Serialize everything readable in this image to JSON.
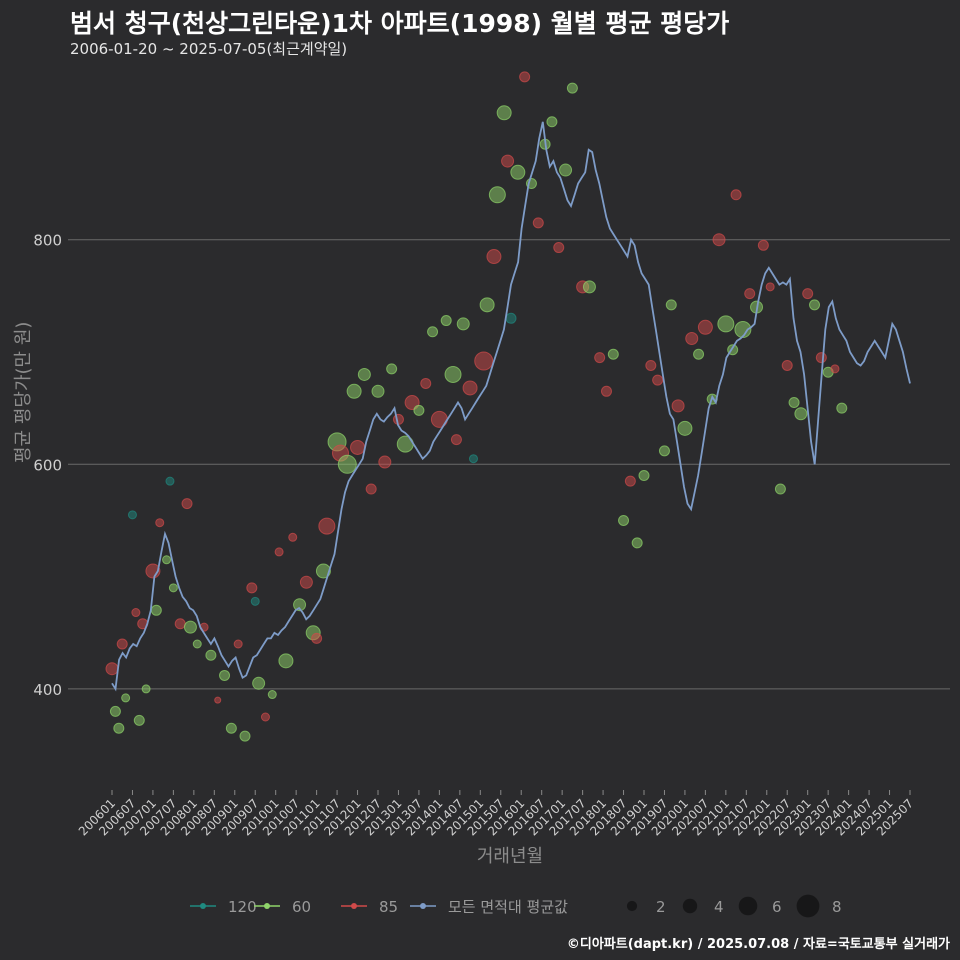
{
  "chart_data": {
    "type": "scatter",
    "title": "범서 청구(천상그린타운)1차 아파트(1998) 월별 평균 평당가",
    "subtitle": "2006-01-20 ~ 2025-07-05(최근계약일)",
    "xlabel": "거래년월",
    "ylabel": "평균 평당가(만 원)",
    "ylim": [
      310,
      960
    ],
    "yticks": [
      400,
      600,
      800
    ],
    "xticks": [
      "200601",
      "200607",
      "200701",
      "200707",
      "200801",
      "200807",
      "200901",
      "200907",
      "201001",
      "201007",
      "201101",
      "201107",
      "201201",
      "201207",
      "201301",
      "201307",
      "201401",
      "201407",
      "201501",
      "201507",
      "201601",
      "201607",
      "201701",
      "201707",
      "201801",
      "201807",
      "201901",
      "201907",
      "202001",
      "202007",
      "202101",
      "202107",
      "202201",
      "202207",
      "202301",
      "202307",
      "202401",
      "202407",
      "202501",
      "202507"
    ],
    "series_colors": {
      "120": "#1f8a80",
      "60": "#8fd46a",
      "85": "#d04a4a",
      "all": "#7e9cc8"
    },
    "legend": {
      "series": [
        {
          "key": "120",
          "label": "120"
        },
        {
          "key": "60",
          "label": "60"
        },
        {
          "key": "85",
          "label": "85"
        },
        {
          "key": "all",
          "label": "모든 면적대 평균값"
        }
      ],
      "sizes": [
        2,
        4,
        6,
        8
      ]
    },
    "avg_series_monthly": [
      405,
      400,
      426,
      432,
      428,
      436,
      440,
      438,
      445,
      450,
      458,
      470,
      500,
      505,
      522,
      538,
      530,
      515,
      500,
      490,
      482,
      478,
      472,
      470,
      465,
      455,
      450,
      445,
      440,
      445,
      438,
      430,
      425,
      420,
      425,
      428,
      418,
      410,
      412,
      420,
      428,
      430,
      435,
      440,
      445,
      445,
      450,
      448,
      452,
      455,
      460,
      465,
      470,
      472,
      468,
      462,
      465,
      470,
      475,
      480,
      490,
      500,
      510,
      520,
      540,
      560,
      575,
      585,
      590,
      595,
      600,
      605,
      620,
      630,
      640,
      645,
      640,
      638,
      642,
      645,
      650,
      635,
      630,
      628,
      625,
      620,
      615,
      610,
      605,
      608,
      612,
      620,
      625,
      630,
      635,
      640,
      645,
      650,
      655,
      650,
      640,
      645,
      650,
      655,
      660,
      665,
      670,
      680,
      690,
      700,
      710,
      720,
      740,
      760,
      770,
      780,
      810,
      830,
      850,
      860,
      870,
      890,
      905,
      880,
      865,
      870,
      860,
      855,
      845,
      835,
      830,
      840,
      850,
      855,
      860,
      880,
      878,
      862,
      850,
      835,
      820,
      810,
      805,
      800,
      795,
      790,
      785,
      800,
      795,
      780,
      770,
      765,
      760,
      740,
      720,
      700,
      680,
      660,
      645,
      640,
      620,
      600,
      580,
      565,
      560,
      575,
      590,
      610,
      630,
      650,
      660,
      655,
      670,
      680,
      695,
      700,
      705,
      710,
      712,
      715,
      720,
      722,
      725,
      745,
      760,
      770,
      775,
      770,
      765,
      760,
      762,
      760,
      765,
      730,
      710,
      700,
      680,
      650,
      620,
      600,
      640,
      680,
      720,
      740,
      745,
      730,
      720,
      715,
      710,
      700,
      695,
      690,
      688,
      692,
      700,
      705,
      710,
      705,
      700,
      695,
      710,
      725,
      720,
      710,
      700,
      685,
      672
    ],
    "points": [
      {
        "s": "85",
        "x": 200601,
        "y": 418,
        "r": 6
      },
      {
        "s": "60",
        "x": 200602,
        "y": 380,
        "r": 5
      },
      {
        "s": "60",
        "x": 200603,
        "y": 365,
        "r": 5
      },
      {
        "s": "85",
        "x": 200604,
        "y": 440,
        "r": 5
      },
      {
        "s": "60",
        "x": 200605,
        "y": 392,
        "r": 4
      },
      {
        "s": "120",
        "x": 200607,
        "y": 555,
        "r": 4
      },
      {
        "s": "85",
        "x": 200608,
        "y": 468,
        "r": 4
      },
      {
        "s": "60",
        "x": 200609,
        "y": 372,
        "r": 5
      },
      {
        "s": "85",
        "x": 200610,
        "y": 458,
        "r": 5
      },
      {
        "s": "60",
        "x": 200611,
        "y": 400,
        "r": 4
      },
      {
        "s": "85",
        "x": 200701,
        "y": 505,
        "r": 7
      },
      {
        "s": "60",
        "x": 200702,
        "y": 470,
        "r": 5
      },
      {
        "s": "85",
        "x": 200703,
        "y": 548,
        "r": 4
      },
      {
        "s": "60",
        "x": 200705,
        "y": 515,
        "r": 4
      },
      {
        "s": "120",
        "x": 200706,
        "y": 585,
        "r": 4
      },
      {
        "s": "60",
        "x": 200707,
        "y": 490,
        "r": 4
      },
      {
        "s": "85",
        "x": 200709,
        "y": 458,
        "r": 5
      },
      {
        "s": "85",
        "x": 200711,
        "y": 565,
        "r": 5
      },
      {
        "s": "60",
        "x": 200712,
        "y": 455,
        "r": 6
      },
      {
        "s": "60",
        "x": 200802,
        "y": 440,
        "r": 4
      },
      {
        "s": "85",
        "x": 200804,
        "y": 455,
        "r": 4
      },
      {
        "s": "60",
        "x": 200806,
        "y": 430,
        "r": 5
      },
      {
        "s": "85",
        "x": 200808,
        "y": 390,
        "r": 3
      },
      {
        "s": "60",
        "x": 200810,
        "y": 412,
        "r": 5
      },
      {
        "s": "60",
        "x": 200812,
        "y": 365,
        "r": 5
      },
      {
        "s": "85",
        "x": 200902,
        "y": 440,
        "r": 4
      },
      {
        "s": "60",
        "x": 200904,
        "y": 358,
        "r": 5
      },
      {
        "s": "85",
        "x": 200906,
        "y": 490,
        "r": 5
      },
      {
        "s": "120",
        "x": 200907,
        "y": 478,
        "r": 4
      },
      {
        "s": "60",
        "x": 200908,
        "y": 405,
        "r": 6
      },
      {
        "s": "85",
        "x": 200910,
        "y": 375,
        "r": 4
      },
      {
        "s": "60",
        "x": 200912,
        "y": 395,
        "r": 4
      },
      {
        "s": "85",
        "x": 201002,
        "y": 522,
        "r": 4
      },
      {
        "s": "60",
        "x": 201004,
        "y": 425,
        "r": 7
      },
      {
        "s": "85",
        "x": 201006,
        "y": 535,
        "r": 4
      },
      {
        "s": "60",
        "x": 201008,
        "y": 475,
        "r": 6
      },
      {
        "s": "85",
        "x": 201010,
        "y": 495,
        "r": 6
      },
      {
        "s": "60",
        "x": 201012,
        "y": 450,
        "r": 7
      },
      {
        "s": "85",
        "x": 201101,
        "y": 445,
        "r": 5
      },
      {
        "s": "60",
        "x": 201103,
        "y": 505,
        "r": 7
      },
      {
        "s": "85",
        "x": 201104,
        "y": 545,
        "r": 8
      },
      {
        "s": "60",
        "x": 201107,
        "y": 620,
        "r": 9
      },
      {
        "s": "85",
        "x": 201108,
        "y": 610,
        "r": 8
      },
      {
        "s": "60",
        "x": 201110,
        "y": 600,
        "r": 9
      },
      {
        "s": "60",
        "x": 201112,
        "y": 665,
        "r": 7
      },
      {
        "s": "85",
        "x": 201201,
        "y": 615,
        "r": 7
      },
      {
        "s": "60",
        "x": 201203,
        "y": 680,
        "r": 6
      },
      {
        "s": "85",
        "x": 201205,
        "y": 578,
        "r": 5
      },
      {
        "s": "60",
        "x": 201207,
        "y": 665,
        "r": 6
      },
      {
        "s": "85",
        "x": 201209,
        "y": 602,
        "r": 6
      },
      {
        "s": "60",
        "x": 201211,
        "y": 685,
        "r": 5
      },
      {
        "s": "85",
        "x": 201301,
        "y": 640,
        "r": 5
      },
      {
        "s": "60",
        "x": 201303,
        "y": 618,
        "r": 8
      },
      {
        "s": "85",
        "x": 201305,
        "y": 655,
        "r": 7
      },
      {
        "s": "60",
        "x": 201307,
        "y": 648,
        "r": 5
      },
      {
        "s": "85",
        "x": 201309,
        "y": 672,
        "r": 5
      },
      {
        "s": "60",
        "x": 201311,
        "y": 718,
        "r": 5
      },
      {
        "s": "85",
        "x": 201401,
        "y": 640,
        "r": 8
      },
      {
        "s": "60",
        "x": 201403,
        "y": 728,
        "r": 5
      },
      {
        "s": "60",
        "x": 201405,
        "y": 680,
        "r": 8
      },
      {
        "s": "85",
        "x": 201406,
        "y": 622,
        "r": 5
      },
      {
        "s": "60",
        "x": 201408,
        "y": 725,
        "r": 6
      },
      {
        "s": "85",
        "x": 201410,
        "y": 668,
        "r": 7
      },
      {
        "s": "120",
        "x": 201411,
        "y": 605,
        "r": 4
      },
      {
        "s": "85",
        "x": 201502,
        "y": 692,
        "r": 9
      },
      {
        "s": "60",
        "x": 201503,
        "y": 742,
        "r": 7
      },
      {
        "s": "85",
        "x": 201505,
        "y": 785,
        "r": 7
      },
      {
        "s": "60",
        "x": 201506,
        "y": 840,
        "r": 8
      },
      {
        "s": "60",
        "x": 201508,
        "y": 913,
        "r": 7
      },
      {
        "s": "85",
        "x": 201509,
        "y": 870,
        "r": 6
      },
      {
        "s": "120",
        "x": 201510,
        "y": 730,
        "r": 5
      },
      {
        "s": "60",
        "x": 201512,
        "y": 860,
        "r": 7
      },
      {
        "s": "85",
        "x": 201602,
        "y": 945,
        "r": 5
      },
      {
        "s": "60",
        "x": 201604,
        "y": 850,
        "r": 5
      },
      {
        "s": "85",
        "x": 201606,
        "y": 815,
        "r": 5
      },
      {
        "s": "60",
        "x": 201608,
        "y": 885,
        "r": 5
      },
      {
        "s": "60",
        "x": 201610,
        "y": 905,
        "r": 5
      },
      {
        "s": "85",
        "x": 201612,
        "y": 793,
        "r": 5
      },
      {
        "s": "60",
        "x": 201702,
        "y": 862,
        "r": 6
      },
      {
        "s": "60",
        "x": 201704,
        "y": 935,
        "r": 5
      },
      {
        "s": "85",
        "x": 201707,
        "y": 758,
        "r": 6
      },
      {
        "s": "60",
        "x": 201709,
        "y": 758,
        "r": 6
      },
      {
        "s": "85",
        "x": 201712,
        "y": 695,
        "r": 5
      },
      {
        "s": "85",
        "x": 201802,
        "y": 665,
        "r": 5
      },
      {
        "s": "60",
        "x": 201804,
        "y": 698,
        "r": 5
      },
      {
        "s": "60",
        "x": 201807,
        "y": 550,
        "r": 5
      },
      {
        "s": "85",
        "x": 201809,
        "y": 585,
        "r": 5
      },
      {
        "s": "60",
        "x": 201811,
        "y": 530,
        "r": 5
      },
      {
        "s": "60",
        "x": 201901,
        "y": 590,
        "r": 5
      },
      {
        "s": "85",
        "x": 201903,
        "y": 688,
        "r": 5
      },
      {
        "s": "85",
        "x": 201905,
        "y": 675,
        "r": 5
      },
      {
        "s": "60",
        "x": 201907,
        "y": 612,
        "r": 5
      },
      {
        "s": "60",
        "x": 201909,
        "y": 742,
        "r": 5
      },
      {
        "s": "85",
        "x": 201911,
        "y": 652,
        "r": 6
      },
      {
        "s": "60",
        "x": 202001,
        "y": 632,
        "r": 7
      },
      {
        "s": "85",
        "x": 202003,
        "y": 712,
        "r": 6
      },
      {
        "s": "60",
        "x": 202005,
        "y": 698,
        "r": 5
      },
      {
        "s": "85",
        "x": 202007,
        "y": 722,
        "r": 7
      },
      {
        "s": "60",
        "x": 202009,
        "y": 658,
        "r": 5
      },
      {
        "s": "85",
        "x": 202011,
        "y": 800,
        "r": 6
      },
      {
        "s": "60",
        "x": 202101,
        "y": 725,
        "r": 8
      },
      {
        "s": "60",
        "x": 202103,
        "y": 702,
        "r": 5
      },
      {
        "s": "85",
        "x": 202104,
        "y": 840,
        "r": 5
      },
      {
        "s": "60",
        "x": 202106,
        "y": 720,
        "r": 8
      },
      {
        "s": "85",
        "x": 202108,
        "y": 752,
        "r": 5
      },
      {
        "s": "60",
        "x": 202110,
        "y": 740,
        "r": 6
      },
      {
        "s": "85",
        "x": 202112,
        "y": 795,
        "r": 5
      },
      {
        "s": "85",
        "x": 202202,
        "y": 758,
        "r": 4
      },
      {
        "s": "60",
        "x": 202205,
        "y": 578,
        "r": 5
      },
      {
        "s": "85",
        "x": 202207,
        "y": 688,
        "r": 5
      },
      {
        "s": "60",
        "x": 202209,
        "y": 655,
        "r": 5
      },
      {
        "s": "60",
        "x": 202211,
        "y": 645,
        "r": 6
      },
      {
        "s": "85",
        "x": 202301,
        "y": 752,
        "r": 5
      },
      {
        "s": "60",
        "x": 202303,
        "y": 742,
        "r": 5
      },
      {
        "s": "85",
        "x": 202305,
        "y": 695,
        "r": 5
      },
      {
        "s": "60",
        "x": 202307,
        "y": 682,
        "r": 5
      },
      {
        "s": "85",
        "x": 202309,
        "y": 685,
        "r": 4
      },
      {
        "s": "60",
        "x": 202311,
        "y": 650,
        "r": 5
      }
    ]
  },
  "credit": "©디아파트(dapt.kr) / 2025.07.08 / 자료=국토교통부 실거래가"
}
